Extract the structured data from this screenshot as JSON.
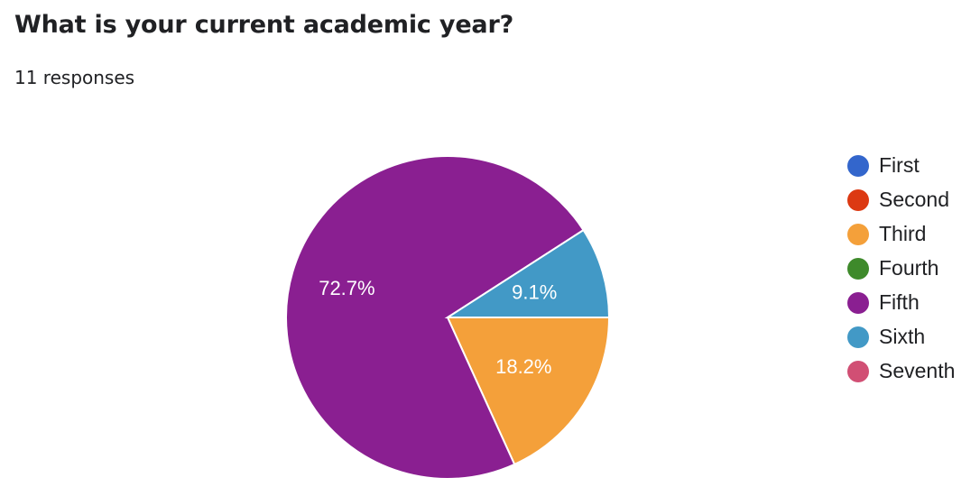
{
  "title": "What is your current academic year?",
  "subtitle": "11 responses",
  "chart_data": {
    "type": "pie",
    "categories": [
      "First",
      "Second",
      "Third",
      "Fourth",
      "Fifth",
      "Sixth",
      "Seventh"
    ],
    "values": [
      0,
      0,
      18.2,
      0,
      72.7,
      9.1,
      0
    ],
    "data_labels": [
      "",
      "",
      "18.2%",
      "",
      "72.7%",
      "9.1%",
      ""
    ],
    "colors": [
      "#3366cc",
      "#dc3912",
      "#ff9900",
      "#109618",
      "#8a1f91",
      "#4299c6",
      "#d14f74"
    ],
    "legend_position": "right"
  },
  "legend": [
    {
      "label": "First",
      "color": "#3366cc"
    },
    {
      "label": "Second",
      "color": "#dc3912"
    },
    {
      "label": "Third",
      "color": "#f4a03a"
    },
    {
      "label": "Fourth",
      "color": "#3e8a2b"
    },
    {
      "label": "Fifth",
      "color": "#8a1f91"
    },
    {
      "label": "Sixth",
      "color": "#4299c6"
    },
    {
      "label": "Seventh",
      "color": "#d14f74"
    }
  ]
}
